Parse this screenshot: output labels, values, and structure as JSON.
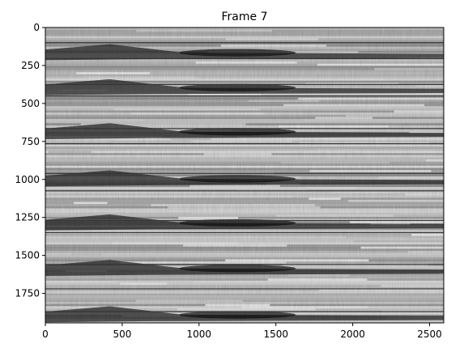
{
  "chart_data": {
    "type": "heatmap",
    "title": "Frame 7",
    "xlabel": "",
    "ylabel": "",
    "xlim": [
      0,
      2592
    ],
    "ylim": [
      1944,
      0
    ],
    "colormap": "gray",
    "x_ticks": [
      0,
      500,
      1000,
      1500,
      2000,
      2500
    ],
    "x_tick_labels": [
      "0",
      "500",
      "1000",
      "1500",
      "2000",
      "2500"
    ],
    "y_ticks": [
      0,
      250,
      500,
      750,
      1000,
      1250,
      1500,
      1750
    ],
    "y_tick_labels": [
      "0",
      "250",
      "500",
      "750",
      "1000",
      "1250",
      "1500",
      "1750"
    ],
    "dark_bands_y": [
      180,
      410,
      700,
      1010,
      1300,
      1600,
      1905
    ],
    "dark_lines_y": [
      100,
      205,
      375,
      450,
      665,
      765,
      960,
      1075,
      1270,
      1350,
      1560,
      1720,
      1870
    ],
    "grid": false,
    "legend": "none"
  }
}
